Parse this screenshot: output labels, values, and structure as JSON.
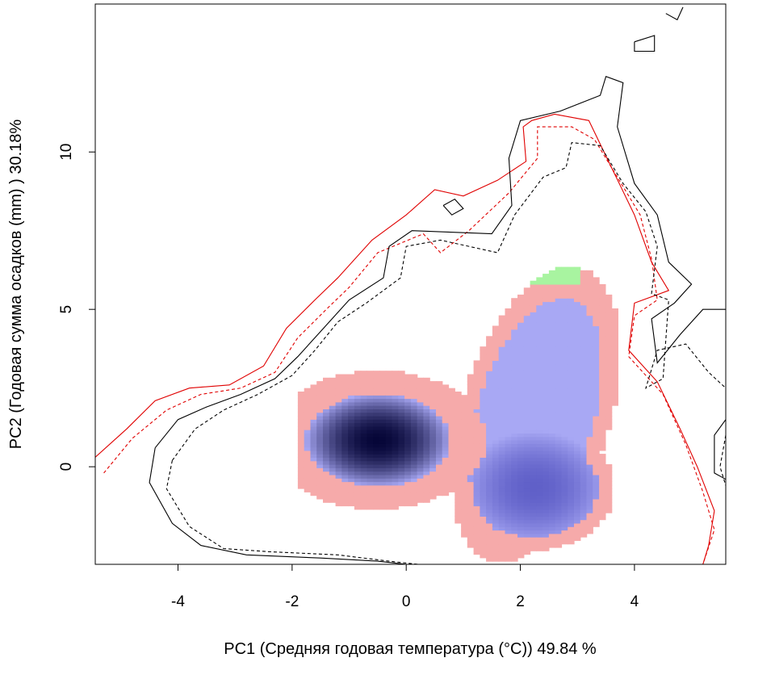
{
  "chart_data": {
    "type": "heatmap",
    "xlabel": "PC1 (Средняя годовая температура (°C)) 49.84 %",
    "ylabel": "PC2 (Годовая сумма осадков  (mm) ) 30.18%",
    "xlim": [
      -5.45,
      5.6
    ],
    "ylim": [
      -3.1,
      14.7
    ],
    "x_ticks": [
      "-4",
      "-2",
      "0",
      "2",
      "4"
    ],
    "y_ticks": [
      "0",
      "5",
      "10"
    ],
    "x_tick_values": [
      -4,
      -2,
      0,
      2,
      4
    ],
    "y_tick_values": [
      0,
      5,
      10
    ],
    "colors": {
      "pink": "#f6aaaa",
      "blue": "#a8a8f4",
      "dark_blue": "#060638",
      "green": "#a8f4a0",
      "red_line": "#e00000",
      "black_line": "#000000"
    },
    "density_blobs": [
      {
        "center": [
          -0.55,
          0.8
        ],
        "rx": 1.9,
        "ry": 2.2
      },
      {
        "center": [
          2.2,
          1.6
        ],
        "rx": 1.35,
        "ry": 4.7
      },
      {
        "center": [
          2.2,
          -0.7
        ],
        "rx": 1.4,
        "ry": 2.0
      }
    ],
    "contours": [
      {
        "style": "solid",
        "color": "#e00000",
        "points": [
          [
            -5.45,
            0.3
          ],
          [
            -4.9,
            1.2
          ],
          [
            -4.4,
            2.1
          ],
          [
            -3.8,
            2.5
          ],
          [
            -3.1,
            2.6
          ],
          [
            -2.5,
            3.2
          ],
          [
            -2.1,
            4.4
          ],
          [
            -1.6,
            5.3
          ],
          [
            -1.2,
            6.0
          ],
          [
            -0.6,
            7.2
          ],
          [
            0,
            8.0
          ],
          [
            0.5,
            8.8
          ],
          [
            1.0,
            8.6
          ],
          [
            1.6,
            9.1
          ],
          [
            2.1,
            9.7
          ],
          [
            2.05,
            10.8
          ],
          [
            2.2,
            11.0
          ],
          [
            2.6,
            11.2
          ],
          [
            3.2,
            11.0
          ],
          [
            3.6,
            9.5
          ],
          [
            4.0,
            8.0
          ],
          [
            4.3,
            6.5
          ],
          [
            4.6,
            5.6
          ],
          [
            4.0,
            5.2
          ],
          [
            3.9,
            3.7
          ],
          [
            4.4,
            2.7
          ],
          [
            4.8,
            1.2
          ],
          [
            5.1,
            0.0
          ],
          [
            5.4,
            -1.4
          ],
          [
            5.3,
            -2.5
          ],
          [
            5.2,
            -3.1
          ]
        ]
      },
      {
        "style": "dashed",
        "color": "#e00000",
        "points": [
          [
            -5.3,
            -0.2
          ],
          [
            -4.8,
            0.9
          ],
          [
            -4.2,
            1.8
          ],
          [
            -3.6,
            2.3
          ],
          [
            -2.9,
            2.5
          ],
          [
            -2.3,
            3.0
          ],
          [
            -1.9,
            4.1
          ],
          [
            -1.4,
            5.0
          ],
          [
            -1.0,
            5.7
          ],
          [
            -0.5,
            6.8
          ],
          [
            0.3,
            7.4
          ],
          [
            0.6,
            6.8
          ],
          [
            1.1,
            7.5
          ],
          [
            1.8,
            8.7
          ],
          [
            2.3,
            9.8
          ],
          [
            2.3,
            10.8
          ],
          [
            2.9,
            10.8
          ],
          [
            3.3,
            10.4
          ],
          [
            3.7,
            9.2
          ],
          [
            4.1,
            8.0
          ],
          [
            4.3,
            6.6
          ],
          [
            4.4,
            5.3
          ],
          [
            4.0,
            4.8
          ],
          [
            3.9,
            3.5
          ],
          [
            4.5,
            2.3
          ],
          [
            4.9,
            0.7
          ],
          [
            5.2,
            -0.8
          ],
          [
            5.4,
            -2.0
          ],
          [
            5.2,
            -3.1
          ]
        ]
      },
      {
        "style": "solid",
        "color": "#000000",
        "points": [
          [
            -4.4,
            0.6
          ],
          [
            -4.5,
            -0.5
          ],
          [
            -4.1,
            -1.8
          ],
          [
            -3.6,
            -2.5
          ],
          [
            -2.8,
            -2.8
          ],
          [
            -1.5,
            -2.9
          ],
          [
            -0.5,
            -3.0
          ],
          [
            0,
            -3.1
          ]
        ]
      },
      {
        "style": "solid",
        "color": "#000000",
        "points": [
          [
            -4.4,
            0.6
          ],
          [
            -4.0,
            1.5
          ],
          [
            -3.5,
            1.9
          ],
          [
            -2.9,
            2.3
          ],
          [
            -2.3,
            2.8
          ],
          [
            -1.9,
            3.5
          ],
          [
            -1.5,
            4.3
          ],
          [
            -1.0,
            5.3
          ],
          [
            -0.4,
            6.0
          ],
          [
            -0.3,
            7.0
          ],
          [
            0.1,
            7.5
          ],
          [
            1.5,
            7.4
          ],
          [
            1.85,
            8.3
          ],
          [
            1.8,
            9.8
          ],
          [
            2.0,
            11.0
          ],
          [
            2.7,
            11.3
          ],
          [
            3.4,
            11.8
          ],
          [
            3.5,
            12.4
          ],
          [
            3.8,
            12.2
          ],
          [
            3.7,
            10.8
          ],
          [
            4.0,
            9.0
          ],
          [
            4.4,
            8.0
          ],
          [
            4.6,
            6.5
          ],
          [
            5.0,
            5.8
          ],
          [
            4.7,
            5.2
          ],
          [
            4.3,
            4.7
          ],
          [
            4.4,
            3.3
          ],
          [
            4.8,
            4.2
          ],
          [
            5.2,
            5.0
          ],
          [
            5.6,
            5.0
          ]
        ]
      },
      {
        "style": "dashed",
        "color": "#000000",
        "points": [
          [
            -4.1,
            0.2
          ],
          [
            -4.2,
            -0.7
          ],
          [
            -3.8,
            -1.9
          ],
          [
            -3.2,
            -2.6
          ],
          [
            -2.4,
            -2.7
          ],
          [
            -1.2,
            -2.8
          ],
          [
            -0.3,
            -3.0
          ],
          [
            0.2,
            -3.1
          ]
        ]
      },
      {
        "style": "dashed",
        "color": "#000000",
        "points": [
          [
            -4.1,
            0.2
          ],
          [
            -3.7,
            1.2
          ],
          [
            -3.2,
            1.8
          ],
          [
            -2.6,
            2.3
          ],
          [
            -2.0,
            2.9
          ],
          [
            -1.6,
            3.7
          ],
          [
            -1.2,
            4.6
          ],
          [
            -0.7,
            5.2
          ],
          [
            -0.1,
            6.0
          ],
          [
            0,
            7.0
          ],
          [
            0.6,
            7.2
          ],
          [
            1.6,
            6.8
          ],
          [
            1.9,
            8.0
          ],
          [
            2.4,
            9.2
          ],
          [
            2.8,
            9.5
          ],
          [
            2.9,
            10.3
          ],
          [
            3.4,
            10.2
          ],
          [
            3.8,
            9.0
          ],
          [
            4.2,
            8.1
          ],
          [
            4.4,
            7.0
          ],
          [
            4.3,
            5.5
          ],
          [
            4.6,
            5.3
          ],
          [
            4.5,
            2.8
          ],
          [
            4.2,
            2.5
          ],
          [
            4.4,
            3.7
          ],
          [
            4.9,
            3.9
          ],
          [
            5.3,
            3.0
          ],
          [
            5.6,
            2.5
          ]
        ]
      },
      {
        "style": "solid",
        "color": "#000000",
        "points": [
          [
            5.6,
            1.5
          ],
          [
            5.4,
            1.0
          ],
          [
            5.4,
            -0.2
          ],
          [
            5.6,
            -0.4
          ]
        ]
      },
      {
        "style": "dashed",
        "color": "#000000",
        "points": [
          [
            5.6,
            1.0
          ],
          [
            5.5,
            0.0
          ],
          [
            5.6,
            -0.6
          ]
        ]
      },
      {
        "style": "solid",
        "color": "#000000",
        "points": [
          [
            0.65,
            8.3
          ],
          [
            0.85,
            8.5
          ],
          [
            1.0,
            8.2
          ],
          [
            0.8,
            8.0
          ],
          [
            0.65,
            8.3
          ]
        ]
      },
      {
        "style": "solid",
        "color": "#000000",
        "points": [
          [
            4.0,
            13.5
          ],
          [
            4.35,
            13.7
          ],
          [
            4.35,
            13.2
          ],
          [
            4.0,
            13.2
          ],
          [
            4.0,
            13.5
          ]
        ]
      },
      {
        "style": "solid",
        "color": "#000000",
        "points": [
          [
            4.55,
            14.4
          ],
          [
            4.75,
            14.2
          ],
          [
            4.85,
            14.6
          ]
        ]
      }
    ]
  }
}
